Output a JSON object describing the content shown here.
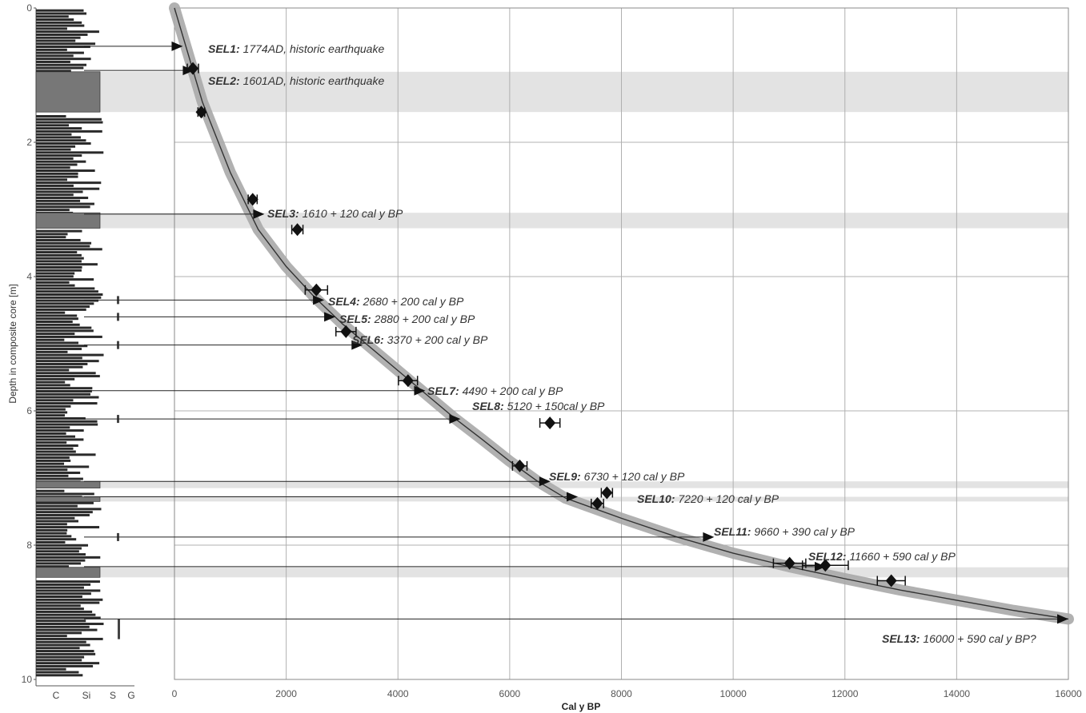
{
  "chart_data": {
    "type": "line",
    "xlabel": "Cal y BP",
    "ylabel": "Depth in composite core [m]",
    "xlim": [
      0,
      16000
    ],
    "ylim": [
      10,
      0
    ],
    "x_ticks": [
      "0",
      "2000",
      "4000",
      "6000",
      "8000",
      "10000",
      "12000",
      "14000",
      "16000"
    ],
    "y_ticks": [
      "0",
      "2",
      "4",
      "6",
      "8",
      "10"
    ],
    "grid": true,
    "age_depth_model": {
      "x": [
        0,
        500,
        1000,
        1500,
        2000,
        2500,
        3000,
        3500,
        4000,
        4500,
        5000,
        5500,
        6000,
        6500,
        7000,
        7500,
        8000,
        9000,
        10000,
        11000,
        12000,
        13000,
        14000,
        15000,
        16000
      ],
      "y": [
        0,
        1.4,
        2.45,
        3.3,
        3.85,
        4.3,
        4.7,
        5.05,
        5.4,
        5.75,
        6.1,
        6.42,
        6.75,
        7.05,
        7.3,
        7.45,
        7.6,
        7.88,
        8.12,
        8.32,
        8.5,
        8.67,
        8.82,
        8.97,
        9.1
      ]
    },
    "dated_samples": [
      {
        "x": 330,
        "y": 0.9,
        "err": 100
      },
      {
        "x": 480,
        "y": 1.55,
        "err": 60
      },
      {
        "x": 1400,
        "y": 2.85,
        "err": 80
      },
      {
        "x": 2200,
        "y": 3.3,
        "err": 100
      },
      {
        "x": 2540,
        "y": 4.2,
        "err": 200
      },
      {
        "x": 3070,
        "y": 4.82,
        "err": 180
      },
      {
        "x": 4180,
        "y": 5.55,
        "err": 170
      },
      {
        "x": 6180,
        "y": 6.82,
        "err": 130
      },
      {
        "x": 6720,
        "y": 6.18,
        "err": 180
      },
      {
        "x": 7570,
        "y": 7.38,
        "err": 110
      },
      {
        "x": 7740,
        "y": 7.22,
        "err": 100
      },
      {
        "x": 11010,
        "y": 8.27,
        "err": 290
      },
      {
        "x": 11650,
        "y": 8.3,
        "err": 410
      },
      {
        "x": 12830,
        "y": 8.53,
        "err": 250
      }
    ],
    "events": [
      {
        "id": "SEL1:",
        "label": "1774AD, historic earthquake",
        "depth": 0.57,
        "age": 150
      },
      {
        "id": "SEL2:",
        "label": "1601AD, historic earthquake",
        "depth": 0.93,
        "age": 350
      },
      {
        "id": "SEL3:",
        "label": "1610 + 120 cal y BP",
        "depth": 3.07,
        "age": 1610
      },
      {
        "id": "SEL4:",
        "label": "2680 + 200 cal y BP",
        "depth": 4.35,
        "age": 2680
      },
      {
        "id": "SEL5:",
        "label": "2880 + 200 cal y BP",
        "depth": 4.6,
        "age": 2880
      },
      {
        "id": "SEL6:",
        "label": "3370 + 200 cal y BP",
        "depth": 5.02,
        "age": 3370
      },
      {
        "id": "SEL7:",
        "label": "4490 + 200 cal y BP",
        "depth": 5.7,
        "age": 4490
      },
      {
        "id": "SEL8:",
        "label": "5120 + 150cal y BP",
        "depth": 6.12,
        "age": 5120
      },
      {
        "id": "SEL9:",
        "label": "6730 + 120 cal y BP",
        "depth": 7.05,
        "age": 6730
      },
      {
        "id": "SEL10:",
        "label": "7220 + 120 cal y BP",
        "depth": 7.28,
        "age": 7220
      },
      {
        "id": "SEL11:",
        "label": "9660 + 390 cal y BP",
        "depth": 7.88,
        "age": 9660
      },
      {
        "id": "SEL12:",
        "label": "11660 + 590 cal y BP",
        "depth": 8.32,
        "age": 11660
      },
      {
        "id": "SEL13:",
        "label": "16000 + 590 cal y BP?",
        "depth": 9.1,
        "age": 16000
      }
    ],
    "event_layers": [
      {
        "top": 0.95,
        "bottom": 1.55
      },
      {
        "top": 3.05,
        "bottom": 3.28
      },
      {
        "top": 7.05,
        "bottom": 7.15
      },
      {
        "top": 7.28,
        "bottom": 7.35
      },
      {
        "top": 8.33,
        "bottom": 8.48
      }
    ],
    "lithology_axis": [
      "C",
      "Si",
      "S",
      "G"
    ]
  },
  "colors": {
    "grid": "#b0b0b0",
    "model_envelope": "#a9a9a9",
    "model_line": "#333333",
    "samples": "#111111",
    "event_band": "#e3e3e3",
    "lithology": "#2a2a2a"
  }
}
